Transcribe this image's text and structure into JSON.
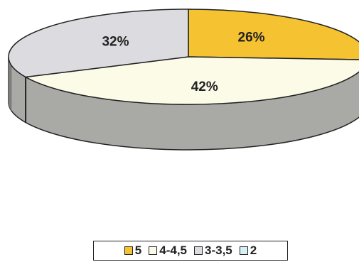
{
  "chart_data": {
    "type": "pie",
    "slices": [
      {
        "label": "5",
        "value": 26,
        "display": "26%",
        "color": "#f5c232"
      },
      {
        "label": "4-4,5",
        "value": 42,
        "display": "42%",
        "color": "#fbfbe8"
      },
      {
        "label": "3-3,5",
        "value": 32,
        "display": "32%",
        "color": "#dcdce0"
      },
      {
        "label": "2",
        "value": 0,
        "display": "",
        "color": "#d6f1f4"
      }
    ],
    "side_color": "#a9aaa6",
    "legend_position": "bottom"
  }
}
